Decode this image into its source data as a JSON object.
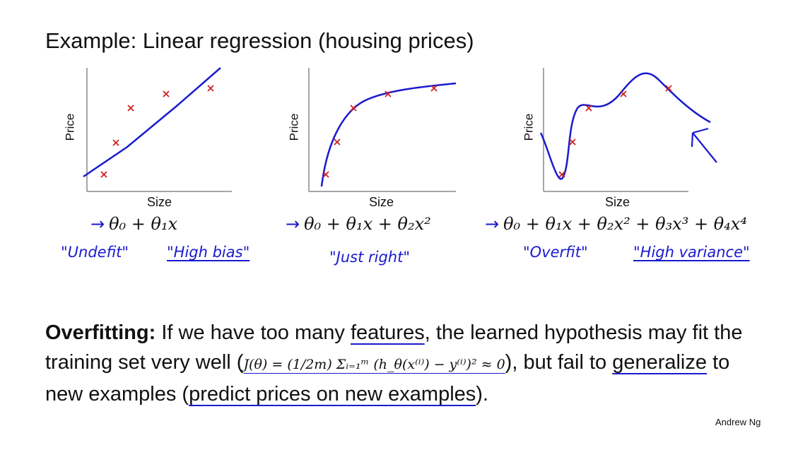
{
  "title": "Example: Linear regression (housing prices)",
  "panels": [
    {
      "ylabel": "Price",
      "xlabel": "Size",
      "formula": "θ₀ + θ₁x",
      "notes": [
        "\"Undefit\"",
        "\"High bias\""
      ]
    },
    {
      "ylabel": "Price",
      "xlabel": "Size",
      "formula": "θ₀ + θ₁x + θ₂x²",
      "notes": [
        "\"Just right\""
      ]
    },
    {
      "ylabel": "Price",
      "xlabel": "Size",
      "formula": "θ₀ + θ₁x + θ₂x² + θ₃x³ + θ₄x⁴",
      "notes": [
        "\"Overfit\"",
        "\"High variance\""
      ]
    }
  ],
  "arrow_glyph": "→",
  "paragraph": {
    "heading": "Overfitting:",
    "text1": " If we have too many ",
    "features": "features",
    "text2": ", the learned hypothesis may fit the training set very well (",
    "equation": "J(θ) = (1/2m) Σᵢ₌₁ᵐ (h_θ(x⁽ⁱ⁾) − y⁽ⁱ⁾)² ≈ 0",
    "text3": "), but fail to ",
    "generalize": "generalize",
    "text4": " to new examples (",
    "predict": "predict prices on new examples",
    "text5": ")."
  },
  "author": "Andrew Ng",
  "colors": {
    "curve": "#1a1ad0",
    "marker": "#cc2222",
    "axis": "#888888"
  }
}
